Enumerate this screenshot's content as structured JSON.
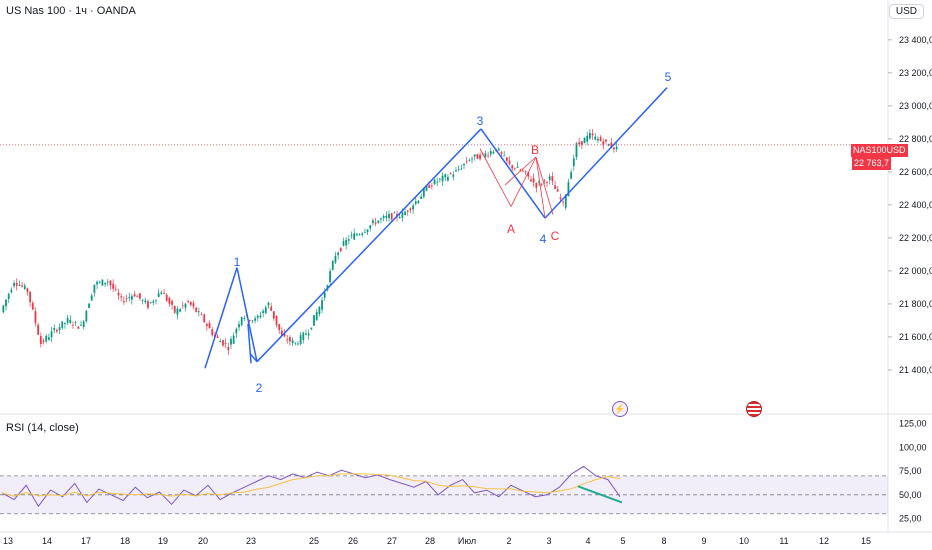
{
  "header": {
    "title": "US Nas 100 · 1ч · OANDA",
    "currency": "USD"
  },
  "price_tag": {
    "symbol": "NAS100USD",
    "value": "22 763,7",
    "color": "#f23645"
  },
  "rsi_header": {
    "title": "RSI (14, close)"
  },
  "icons": [
    "lightning-icon",
    "us-flag-icon"
  ],
  "colors": {
    "up": "#089981",
    "down": "#f23645",
    "wave": "#2962ff",
    "corr": "#f23645",
    "rsi": "#7e57c2",
    "rsi_ma": "#f5c242",
    "div": "#22ab94"
  },
  "chart_data": [
    {
      "type": "line",
      "title": "US Nas 100 · 1ч · OANDA",
      "y_tick_labels": [
        "21 400,0",
        "21 600,0",
        "21 800,0",
        "22 000,0",
        "22 200,0",
        "22 400,0",
        "22 600,0",
        "22 800,0",
        "23 000,0",
        "23 200,0",
        "23 400,0"
      ],
      "y_ticks": [
        21400,
        21600,
        21800,
        22000,
        22200,
        22400,
        22600,
        22800,
        23000,
        23200,
        23400
      ],
      "ylim": [
        21230,
        23520
      ],
      "x_tick_labels": [
        "13",
        "14",
        "17",
        "18",
        "19",
        "20",
        "23",
        "25",
        "26",
        "27",
        "28",
        "Июл",
        "2",
        "3",
        "4",
        "5",
        "8",
        "9",
        "10",
        "11",
        "12",
        "15"
      ],
      "last_price": 22763.7,
      "series": [
        {
          "values": [
            21750,
            21940,
            21880,
            21560,
            21640,
            21700,
            21660,
            21920,
            21940,
            21820,
            21860,
            21790,
            21880,
            21750,
            21810,
            21720,
            21600,
            21540,
            21730,
            21700,
            21800,
            21600,
            21560,
            21640,
            21820,
            22100,
            22200,
            22240,
            22300,
            22330,
            22340,
            22420,
            22520,
            22560,
            22600,
            22680,
            22700,
            22740,
            22640,
            22600,
            22520,
            22560,
            22400,
            22760,
            22820,
            22780,
            22740
          ]
        }
      ],
      "wave_labels": [
        {
          "text": "1",
          "price": 22020
        },
        {
          "text": "2",
          "price": 21450
        },
        {
          "text": "3",
          "price": 22860
        },
        {
          "text": "4",
          "price": 22320
        },
        {
          "text": "5",
          "price": 23110
        },
        {
          "text": "A",
          "price": 22390
        },
        {
          "text": "B",
          "price": 22690
        },
        {
          "text": "C",
          "price": 22340
        }
      ]
    },
    {
      "type": "line",
      "title": "RSI (14, close)",
      "y_tick_labels": [
        "25,00",
        "50,00",
        "75,00",
        "100,00",
        "125,00"
      ],
      "y_ticks": [
        25,
        50,
        75,
        100,
        125
      ],
      "ylim": [
        15,
        131
      ],
      "bands": [
        30,
        50,
        70
      ],
      "series": [
        {
          "values": [
            52,
            45,
            60,
            38,
            55,
            48,
            62,
            42,
            56,
            50,
            44,
            58,
            47,
            53,
            40,
            55,
            49,
            60,
            45,
            52,
            58,
            64,
            70,
            66,
            72,
            68,
            74,
            70,
            76,
            72,
            68,
            71,
            66,
            62,
            58,
            64,
            50,
            60,
            66,
            52,
            55,
            48,
            60,
            54,
            48,
            50,
            58,
            72,
            80,
            70,
            66,
            48
          ]
        }
      ],
      "divergence": [
        59,
        42
      ]
    }
  ]
}
